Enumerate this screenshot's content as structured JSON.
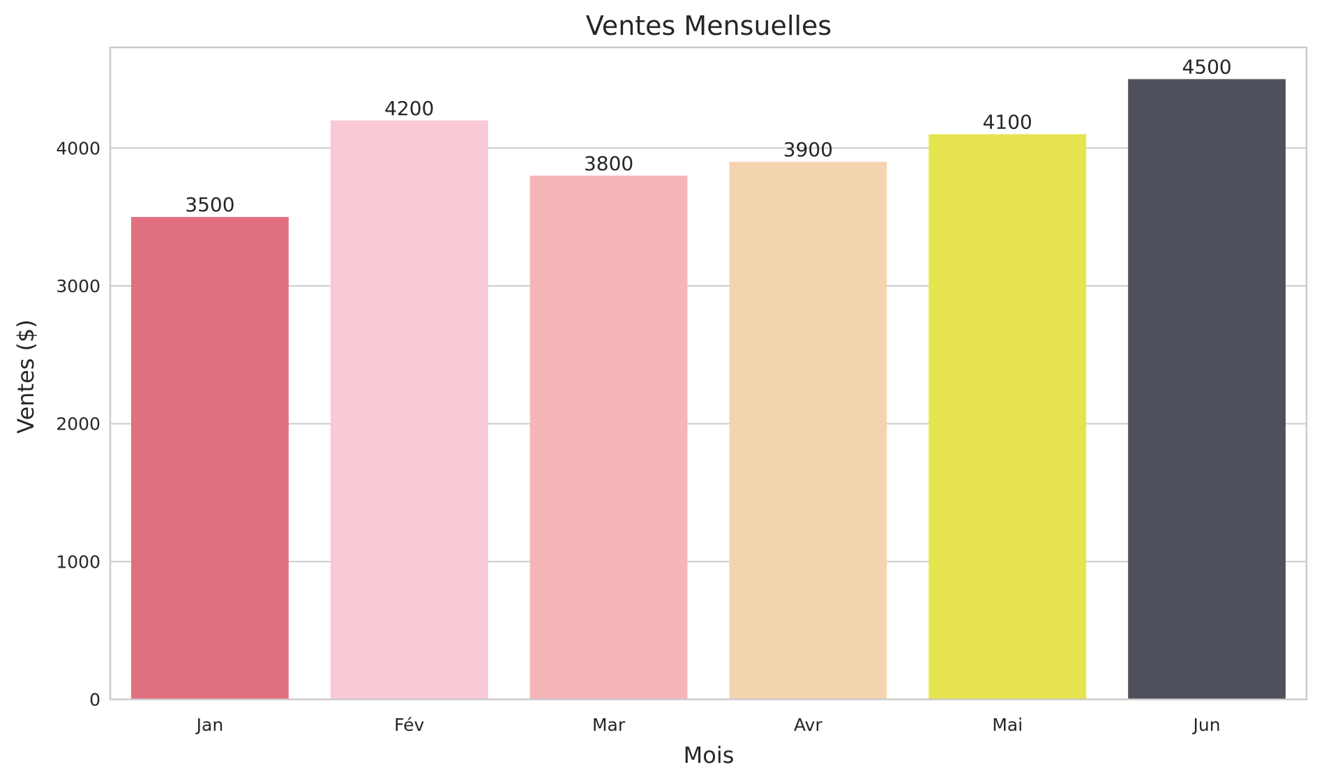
{
  "chart_data": {
    "type": "bar",
    "title": "Ventes Mensuelles",
    "xlabel": "Mois",
    "ylabel": "Ventes ($)",
    "categories": [
      "Jan",
      "Fév",
      "Mar",
      "Avr",
      "Mai",
      "Jun"
    ],
    "values": [
      3500,
      4200,
      3800,
      3900,
      4100,
      4500
    ],
    "data_labels": [
      "3500",
      "4200",
      "3800",
      "3900",
      "4100",
      "4500"
    ],
    "colors": [
      "#e07080",
      "#f9c9d5",
      "#f6b5b8",
      "#f4d4ae",
      "#e6e44e",
      "#4e505c"
    ],
    "ylim": [
      0,
      4730
    ],
    "yticks": [
      0,
      1000,
      2000,
      3000,
      4000
    ],
    "ytick_labels": [
      "0",
      "1000",
      "2000",
      "3000",
      "4000"
    ],
    "grid": "y",
    "legend": "none"
  }
}
